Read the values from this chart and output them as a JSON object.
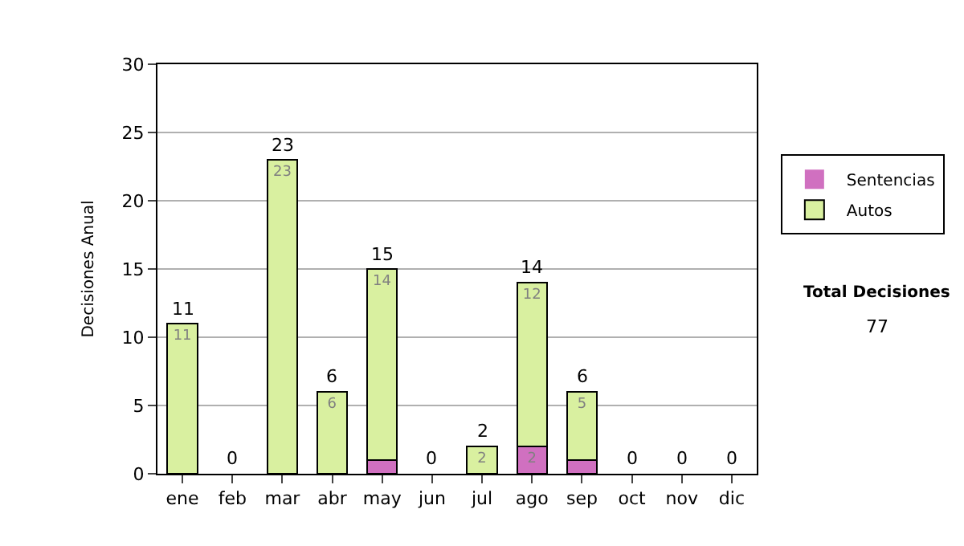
{
  "chart_data": {
    "type": "bar",
    "stacked": true,
    "ylabel": "Decisiones Anual",
    "categories": [
      "ene",
      "feb",
      "mar",
      "abr",
      "may",
      "jun",
      "jul",
      "ago",
      "sep",
      "oct",
      "nov",
      "dic"
    ],
    "series": [
      {
        "name": "Sentencias",
        "color": "#d070c0",
        "values": [
          0,
          0,
          0,
          0,
          1,
          0,
          0,
          2,
          1,
          0,
          0,
          0
        ],
        "value_labels": [
          null,
          null,
          null,
          null,
          null,
          null,
          null,
          "2",
          null,
          null,
          null,
          null
        ]
      },
      {
        "name": "Autos",
        "color": "#d9f0a0",
        "values": [
          11,
          0,
          23,
          6,
          14,
          0,
          2,
          12,
          5,
          0,
          0,
          0
        ],
        "value_labels": [
          "11",
          null,
          "23",
          "6",
          "14",
          null,
          "2",
          "12",
          "5",
          null,
          null,
          null
        ]
      }
    ],
    "totals": [
      "11",
      "0",
      "23",
      "6",
      "15",
      "0",
      "2",
      "14",
      "6",
      "0",
      "0",
      "0"
    ],
    "ylim": [
      0,
      30
    ],
    "yticks": [
      0,
      5,
      10,
      15,
      20,
      25,
      30
    ],
    "grid": "y",
    "legend": "right",
    "annotations": [
      "Total Decisiones",
      "77"
    ]
  }
}
